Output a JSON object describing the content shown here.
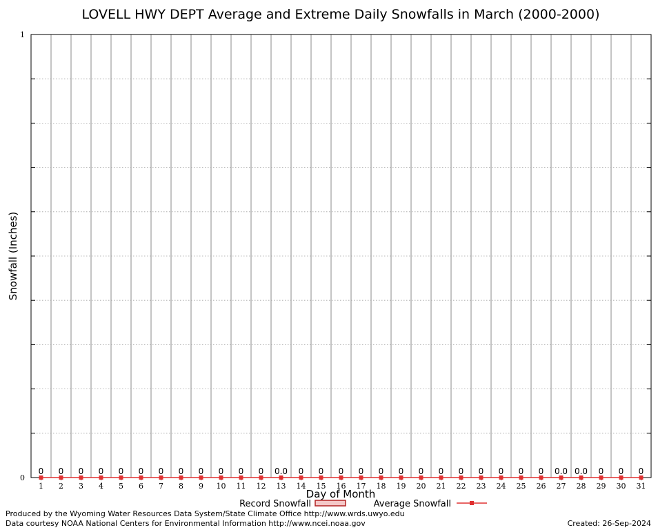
{
  "chart_data": {
    "type": "bar",
    "title": "LOVELL HWY DEPT Average and Extreme Daily Snowfalls in March (2000-2000)",
    "xlabel": "Day of Month",
    "ylabel": "Snowfall (Inches)",
    "ylim": [
      0,
      1
    ],
    "y_ticks": [
      "0",
      "1"
    ],
    "grid": true,
    "legend_position": "bottom-center",
    "categories": [
      "1",
      "2",
      "3",
      "4",
      "5",
      "6",
      "7",
      "8",
      "9",
      "10",
      "11",
      "12",
      "13",
      "14",
      "15",
      "16",
      "17",
      "18",
      "19",
      "20",
      "21",
      "22",
      "23",
      "24",
      "25",
      "26",
      "27",
      "28",
      "29",
      "30",
      "31"
    ],
    "series": [
      {
        "name": "Record Snowfall",
        "kind": "bar",
        "color": "#b22222",
        "values": [
          0,
          0,
          0,
          0,
          0,
          0,
          0,
          0,
          0,
          0,
          0,
          0,
          0,
          0,
          0,
          0,
          0,
          0,
          0,
          0,
          0,
          0,
          0,
          0,
          0,
          0,
          0,
          0,
          0,
          0,
          0
        ]
      },
      {
        "name": "Average Snowfall",
        "kind": "line",
        "color": "#e03030",
        "values": [
          0,
          0,
          0,
          0,
          0,
          0,
          0,
          0,
          0,
          0,
          0,
          0,
          0,
          0,
          0,
          0,
          0,
          0,
          0,
          0,
          0,
          0,
          0,
          0,
          0,
          0,
          0,
          0,
          0,
          0,
          0
        ]
      }
    ],
    "data_labels": [
      "0",
      "0",
      "0",
      "0",
      "0",
      "0",
      "0",
      "0",
      "0",
      "0",
      "0",
      "0",
      "0.0",
      "0",
      "0",
      "0",
      "0",
      "0",
      "0",
      "0",
      "0",
      "0",
      "0",
      "0",
      "0",
      "0",
      "0.0",
      "0.0",
      "0",
      "0",
      "0"
    ]
  },
  "footer": {
    "line1": "Produced by the Wyoming Water Resources Data System/State Climate Office http://www.wrds.uwyo.edu",
    "line2": "Data courtesy NOAA National Centers for Environmental Information http://www.ncei.noaa.gov",
    "created": "Created:  26-Sep-2024"
  }
}
